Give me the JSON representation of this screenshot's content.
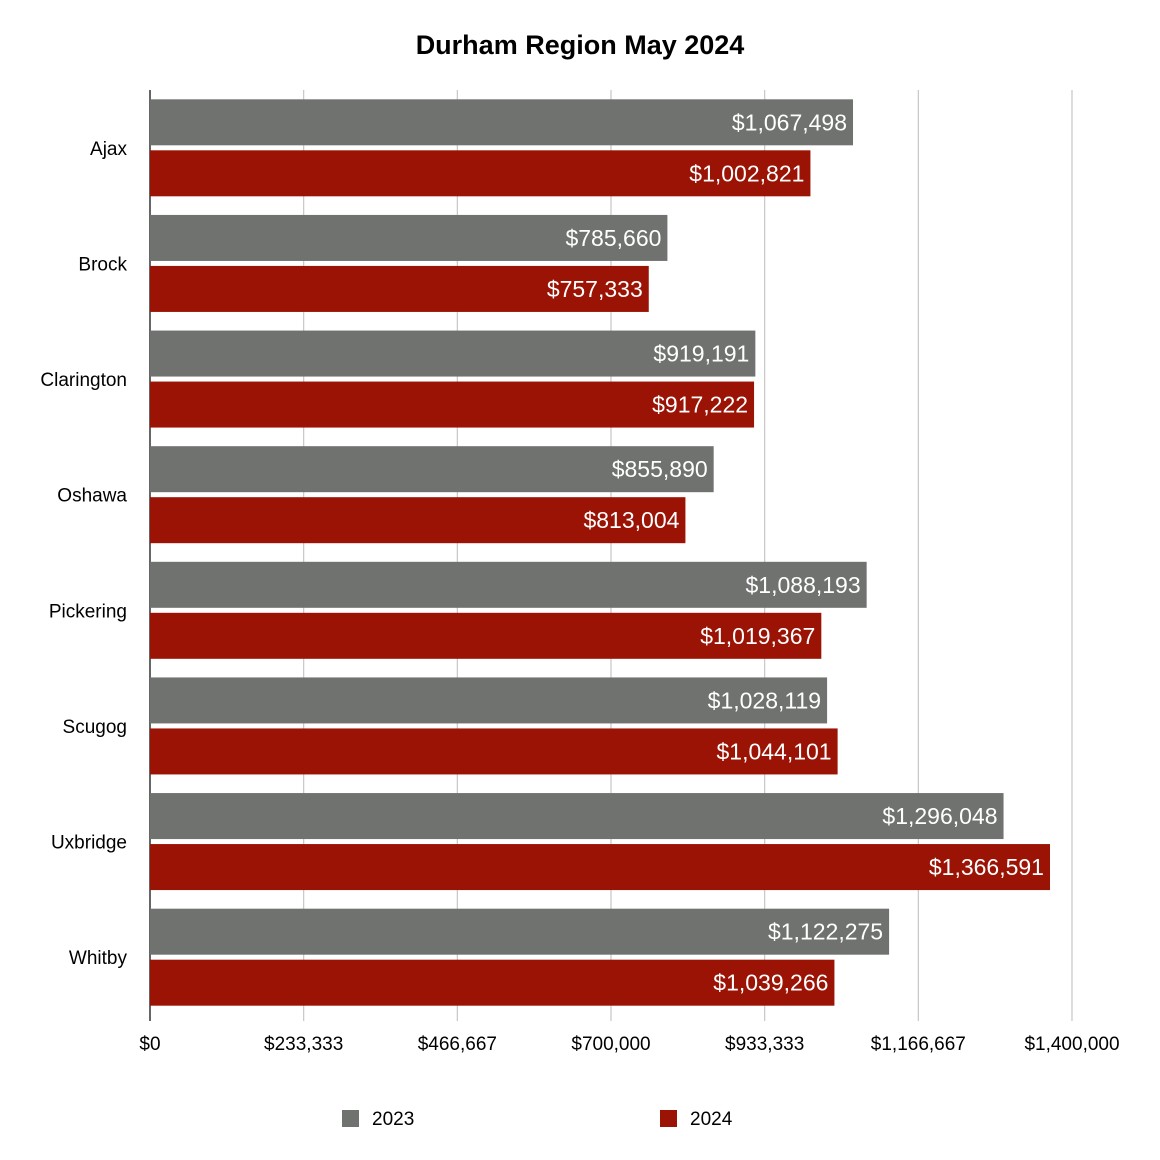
{
  "chart_data": {
    "type": "bar",
    "orientation": "horizontal",
    "title": "Durham Region May 2024",
    "categories": [
      "Ajax",
      "Brock",
      "Clarington",
      "Oshawa",
      "Pickering",
      "Scugog",
      "Uxbridge",
      "Whitby"
    ],
    "series": [
      {
        "name": "2023",
        "color": "#6f726f",
        "values": [
          1067498,
          785660,
          919191,
          855890,
          1088193,
          1028119,
          1296048,
          1122275
        ],
        "labels": [
          "$1,067,498",
          "$785,660",
          "$919,191",
          "$855,890",
          "$1,088,193",
          "$1,028,119",
          "$1,296,048",
          "$1,122,275"
        ]
      },
      {
        "name": "2024",
        "color": "#9a1305",
        "values": [
          1002821,
          757333,
          917222,
          813004,
          1019367,
          1044101,
          1366591,
          1039266
        ],
        "labels": [
          "$1,002,821",
          "$757,333",
          "$917,222",
          "$813,004",
          "$1,019,367",
          "$1,044,101",
          "$1,366,591",
          "$1,039,266"
        ]
      }
    ],
    "xlim": [
      0,
      1400000
    ],
    "x_ticks": [
      0,
      233333,
      466667,
      700000,
      933333,
      1166667,
      1400000
    ],
    "x_tick_labels": [
      "$0",
      "$233,333",
      "$466,667",
      "$700,000",
      "$933,333",
      "$1,166,667",
      "$1,400,000"
    ],
    "grid": true,
    "legend_position": "bottom",
    "gridline_color": "#c6c6c6"
  }
}
